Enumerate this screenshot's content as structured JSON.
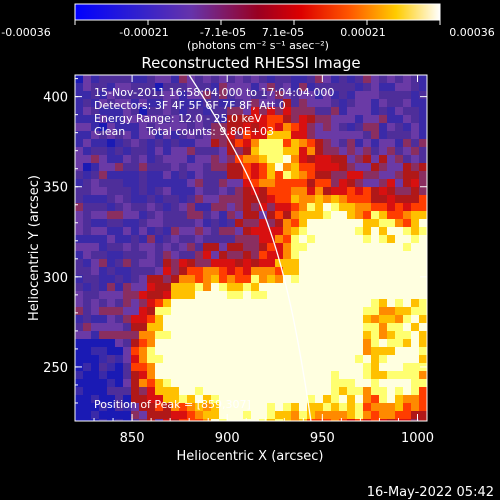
{
  "chart_data": {
    "type": "heatmap",
    "title": "Reconstructed RHESSI Image",
    "xlabel": "Heliocentric X (arcsec)",
    "ylabel": "Heliocentric Y (arcsec)",
    "xlim": [
      820,
      1005
    ],
    "ylim": [
      220,
      412
    ],
    "x_ticks": [
      "850",
      "900",
      "950",
      "1000"
    ],
    "y_ticks": [
      "250",
      "300",
      "350",
      "400"
    ],
    "colorbar": {
      "label": "(photons cm⁻² s⁻¹ asec⁻²)",
      "ticks": [
        "-0.00036",
        "-0.00021",
        "-7.1e-05",
        "7.1e-05",
        "0.00021",
        "0.00036"
      ],
      "range": [
        -0.00036,
        0.00036
      ]
    },
    "annotations": [
      "15-Nov-2011 16:58:04.000 to 17:04:04.000",
      "Detectors: 3F 4F 5F 6F 7F 8F, Att 0",
      "Energy Range: 12.0 - 25.0 keV",
      "Clean      Total counts: 9.80E+03"
    ],
    "peak_label": "Position of Peak = [859,307]",
    "peak": [
      859,
      307
    ],
    "limb_arc": [
      [
        880,
        412
      ],
      [
        918,
        350
      ],
      [
        930,
        320
      ],
      [
        944,
        220
      ]
    ]
  },
  "footer": {
    "timestamp": "16-May-2022 05:42"
  },
  "colors": {
    "background": "#000000",
    "colormap_low": "#0a0aa0",
    "colormap_mid_low": "#5a3aa6",
    "colormap_mid": "#c01010",
    "colormap_high": "#ffff60",
    "colormap_top": "#ffffff"
  }
}
